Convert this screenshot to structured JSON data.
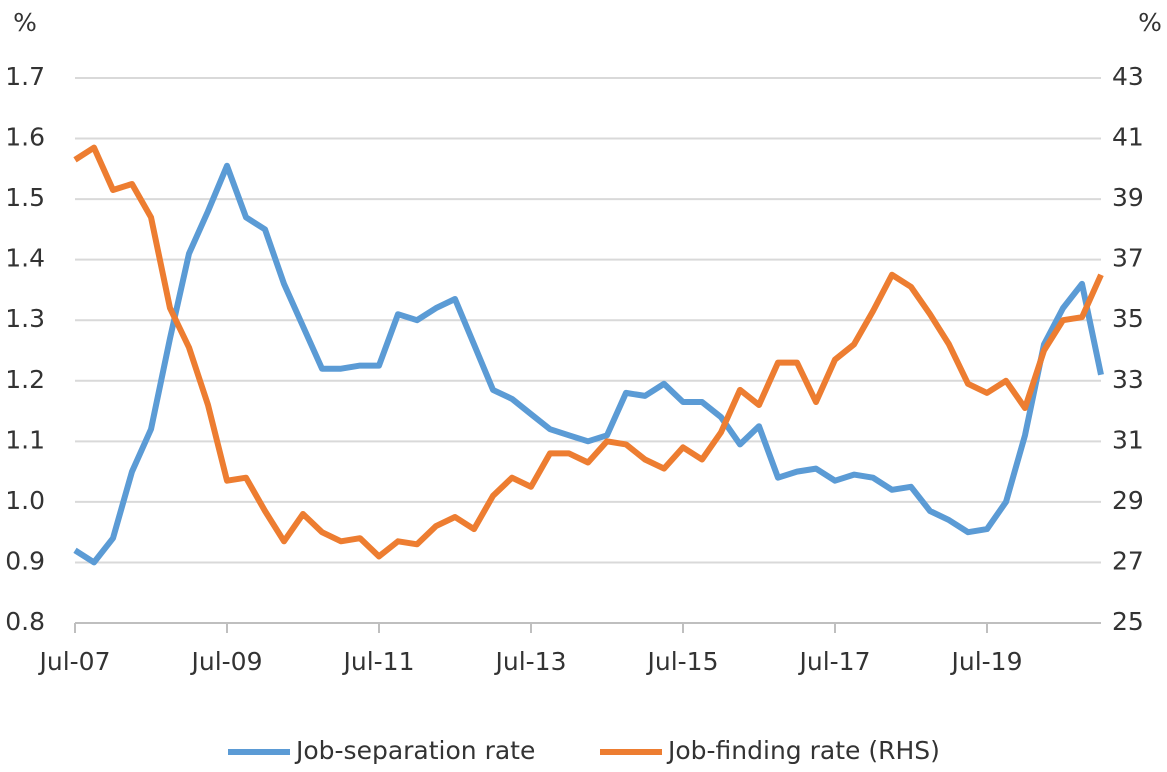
{
  "chart_data": {
    "type": "line",
    "ylabel": "%",
    "y2label": "%",
    "categories": [
      "Jul-07",
      null,
      null,
      null,
      null,
      null,
      null,
      null,
      "Jul-09",
      null,
      null,
      null,
      null,
      null,
      null,
      null,
      "Jul-11",
      null,
      null,
      null,
      null,
      null,
      null,
      null,
      "Jul-13",
      null,
      null,
      null,
      null,
      null,
      null,
      null,
      "Jul-15",
      null,
      null,
      null,
      null,
      null,
      null,
      null,
      "Jul-17",
      null,
      null,
      null,
      null,
      null,
      null,
      null,
      "Jul-19",
      null,
      null,
      null,
      null,
      null,
      null
    ],
    "series": [
      {
        "name": "Job-separation rate",
        "color": "#5b9bd5",
        "axis": "y",
        "values": [
          0.92,
          0.9,
          0.94,
          1.05,
          1.12,
          1.27,
          1.41,
          1.48,
          1.555,
          1.47,
          1.45,
          1.36,
          1.29,
          1.22,
          1.22,
          1.225,
          1.225,
          1.31,
          1.3,
          1.32,
          1.335,
          1.26,
          1.185,
          1.17,
          1.145,
          1.12,
          1.11,
          1.1,
          1.11,
          1.18,
          1.175,
          1.195,
          1.165,
          1.165,
          1.14,
          1.095,
          1.125,
          1.04,
          1.05,
          1.055,
          1.035,
          1.045,
          1.04,
          1.02,
          1.025,
          0.985,
          0.97,
          0.95,
          0.955,
          1.0,
          1.11,
          1.26,
          1.32,
          1.36,
          1.21
        ]
      },
      {
        "name": "Job-finding rate (RHS)",
        "color": "#ed7d31",
        "axis": "y2",
        "values": [
          40.3,
          40.7,
          39.3,
          39.5,
          38.4,
          35.4,
          34.1,
          32.2,
          29.7,
          29.8,
          28.7,
          27.7,
          28.6,
          28.0,
          27.7,
          27.8,
          27.2,
          27.7,
          27.6,
          28.2,
          28.5,
          28.1,
          29.2,
          29.8,
          29.5,
          30.6,
          30.6,
          30.3,
          31.0,
          30.9,
          30.4,
          30.1,
          30.8,
          30.4,
          31.3,
          32.7,
          32.2,
          33.6,
          33.6,
          32.3,
          33.7,
          34.2,
          35.3,
          36.5,
          36.1,
          35.2,
          34.2,
          32.9,
          32.6,
          33.0,
          32.1,
          34.0,
          35.0,
          35.1,
          36.5
        ]
      }
    ],
    "ylim": [
      0.8,
      1.7
    ],
    "yticks": [
      0.8,
      0.9,
      {
        "value": 1,
        "label": "1.0"
      },
      1.1,
      1.2,
      1.3,
      1.4,
      1.5,
      1.6,
      1.7
    ],
    "y2lim": [
      25,
      43
    ],
    "y2ticks": [
      25,
      27,
      29,
      31,
      33,
      35,
      37,
      39,
      41,
      43
    ],
    "grid": true,
    "legend": "bottom"
  }
}
